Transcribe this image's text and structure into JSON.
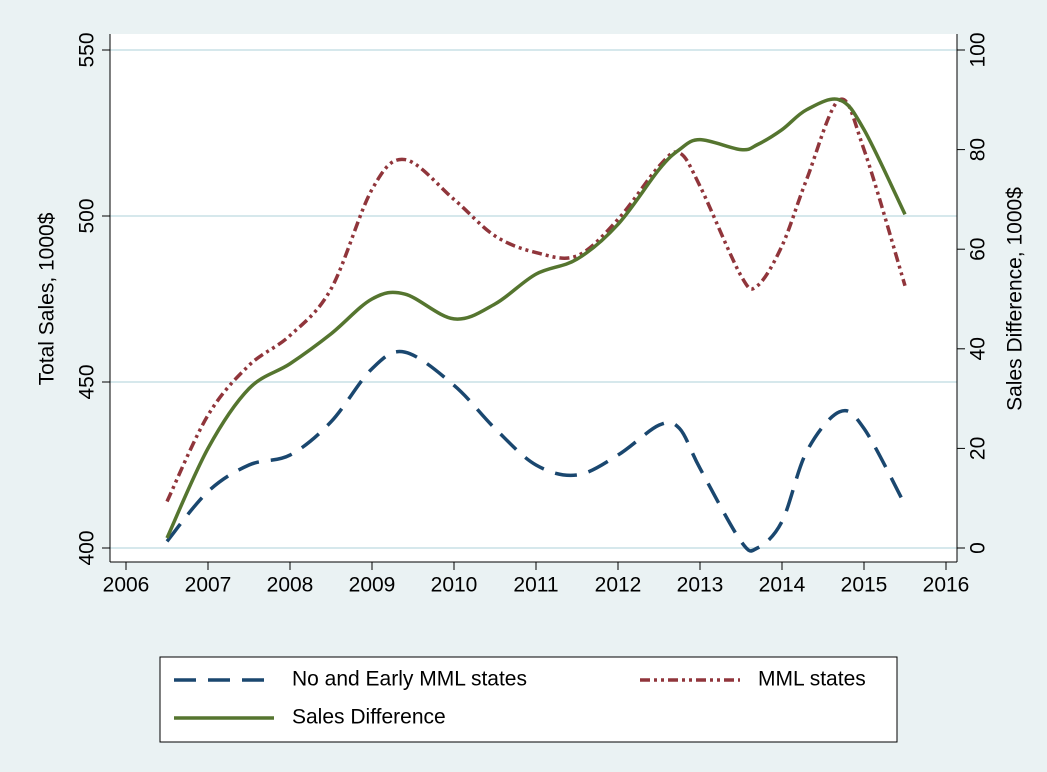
{
  "chart_data": {
    "type": "line",
    "ylabel": "Total Sales, 1000$",
    "y2label": "Sales Difference, 1000$",
    "x": [
      2006.5,
      2007,
      2007.5,
      2008,
      2008.5,
      2009,
      2009.4,
      2010,
      2010.5,
      2011,
      2011.5,
      2012,
      2012.5,
      2012.75,
      2013,
      2013.5,
      2013.7,
      2014,
      2014.3,
      2014.7,
      2015,
      2015.5
    ],
    "series": [
      {
        "name": "No and Early MML states",
        "color": "#1a476f",
        "dash": "22 12",
        "values": [
          402,
          417,
          425,
          428,
          438,
          454,
          459,
          449,
          436,
          425,
          422,
          428,
          437,
          436,
          424,
          402,
          400,
          408,
          429,
          441,
          436,
          413
        ]
      },
      {
        "name": "MML states",
        "color": "#90353b",
        "dash": "10 4 3 4 3 4",
        "values": [
          414,
          440,
          455,
          464,
          478,
          508,
          517,
          505,
          494,
          489,
          488,
          499,
          515,
          519,
          509,
          482,
          479,
          491,
          511,
          535,
          520,
          479
        ]
      },
      {
        "name": "Sales Difference",
        "color": "#55752f",
        "axis": "y2",
        "values": [
          2,
          20,
          32,
          37,
          43,
          50,
          51,
          46,
          49,
          55,
          58,
          65,
          76,
          80,
          82,
          80,
          81,
          84,
          88,
          90,
          84,
          67
        ]
      }
    ],
    "xlim": [
      2006,
      2016
    ],
    "xticks": [
      2006,
      2007,
      2008,
      2009,
      2010,
      2011,
      2012,
      2013,
      2014,
      2015,
      2016
    ],
    "ylim": [
      400,
      550
    ],
    "yticks": [
      400,
      450,
      500,
      550
    ],
    "y2lim": [
      0,
      100
    ],
    "y2ticks": [
      0,
      20,
      40,
      60,
      80,
      100
    ],
    "grid": true
  }
}
